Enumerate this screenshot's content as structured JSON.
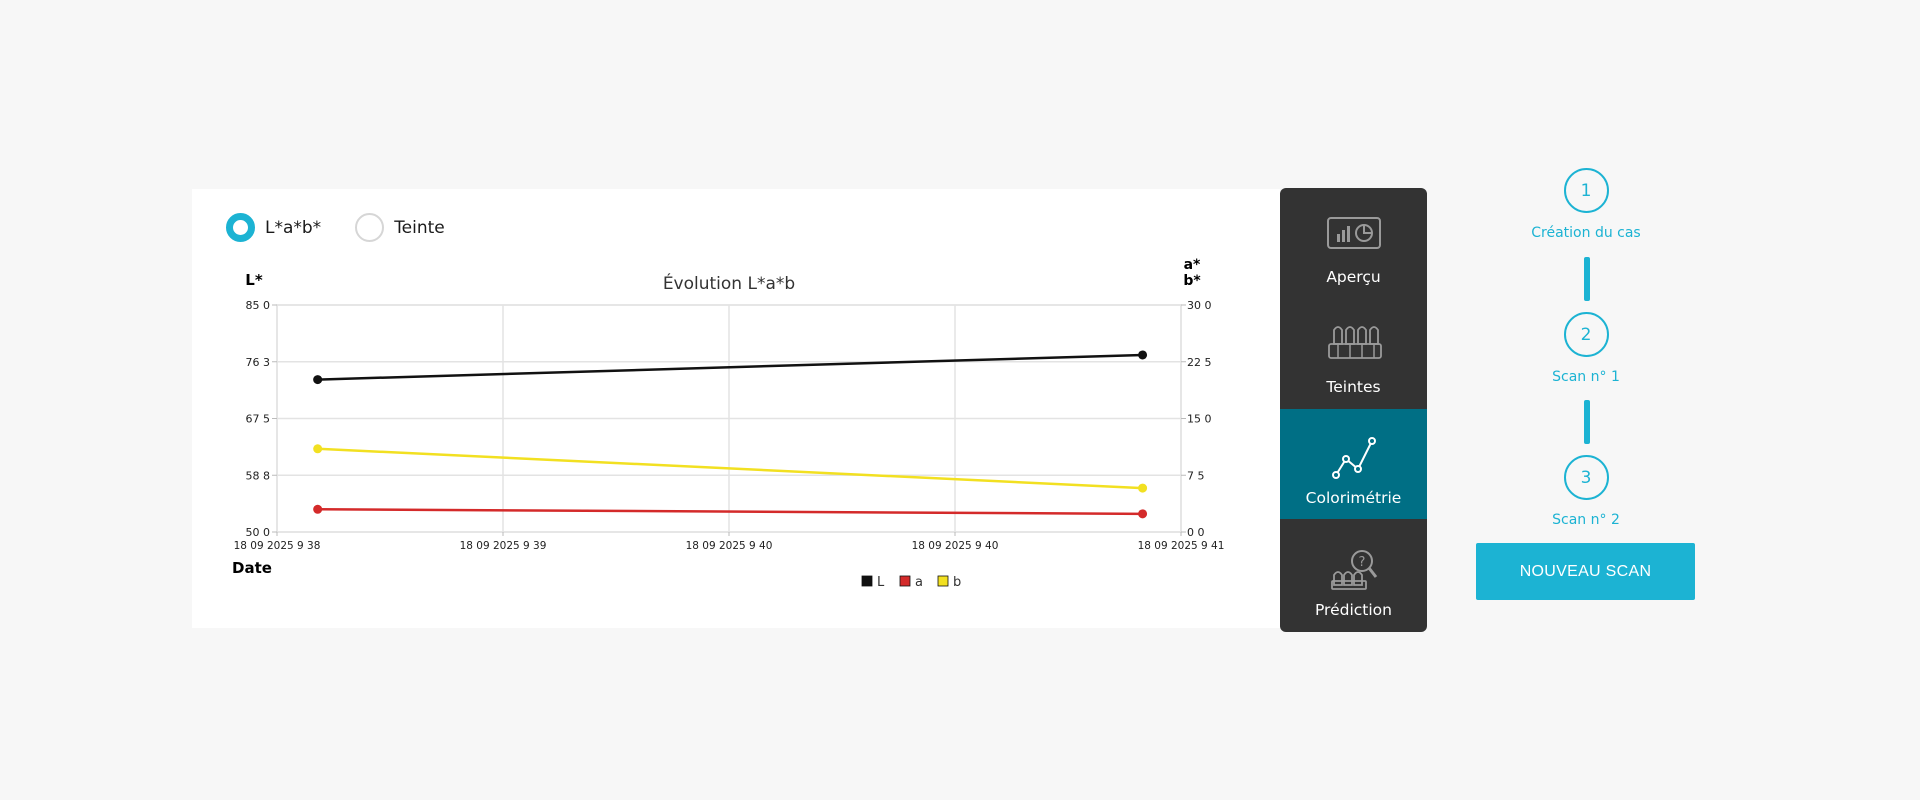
{
  "view_toggle": {
    "options": [
      {
        "label": "L*a*b*",
        "checked": true
      },
      {
        "label": "Teinte",
        "checked": false
      }
    ]
  },
  "chart_data": {
    "type": "line",
    "title": "Évolution L*a*b",
    "ylabel_left": "L*",
    "ylabel_right": [
      "a*",
      "b*"
    ],
    "xlabel": "Date",
    "x_tick_labels": [
      "18 09 2025 9 38",
      "18 09 2025 9 39",
      "18 09 2025 9 40",
      "18 09 2025 9 40",
      "18 09 2025 9 41"
    ],
    "y_left": {
      "min": 50.0,
      "max": 85.0,
      "tick_labels": [
        "50 0",
        "58 8",
        "67 5",
        "76 3",
        "85 0"
      ]
    },
    "y_right": {
      "min": 0.0,
      "max": 30.0,
      "tick_labels": [
        "0 0",
        "7 5",
        "15 0",
        "22 5",
        "30 0"
      ]
    },
    "x_range": [
      0,
      4
    ],
    "grid": true,
    "legend_position": "bottom",
    "series": [
      {
        "name": "L",
        "axis": "left",
        "color": "#111111",
        "x": [
          0.18,
          3.83
        ],
        "values": [
          73.5,
          77.3
        ]
      },
      {
        "name": "a",
        "axis": "right",
        "color": "#d42a2a",
        "x": [
          0.18,
          3.83
        ],
        "values": [
          3.0,
          2.4
        ]
      },
      {
        "name": "b",
        "axis": "right",
        "color": "#f2e021",
        "x": [
          0.18,
          3.83
        ],
        "values": [
          11.0,
          5.8
        ]
      }
    ]
  },
  "side_menu": {
    "items": [
      {
        "label": "Aperçu",
        "icon": "overview-icon",
        "active": false
      },
      {
        "label": "Teintes",
        "icon": "shade-guide-icon",
        "active": false
      },
      {
        "label": "Colorimétrie",
        "icon": "line-chart-icon",
        "active": true
      },
      {
        "label": "Prédiction",
        "icon": "prediction-icon",
        "active": false
      }
    ]
  },
  "stepper": {
    "steps": [
      {
        "number": "1",
        "label": "Création du cas"
      },
      {
        "number": "2",
        "label": "Scan n° 1"
      },
      {
        "number": "3",
        "label": "Scan n° 2"
      }
    ]
  },
  "new_scan_button": "NOUVEAU SCAN",
  "colors": {
    "accent": "#1cb3d3",
    "menu_bg": "#333333",
    "menu_active": "#006f85"
  }
}
